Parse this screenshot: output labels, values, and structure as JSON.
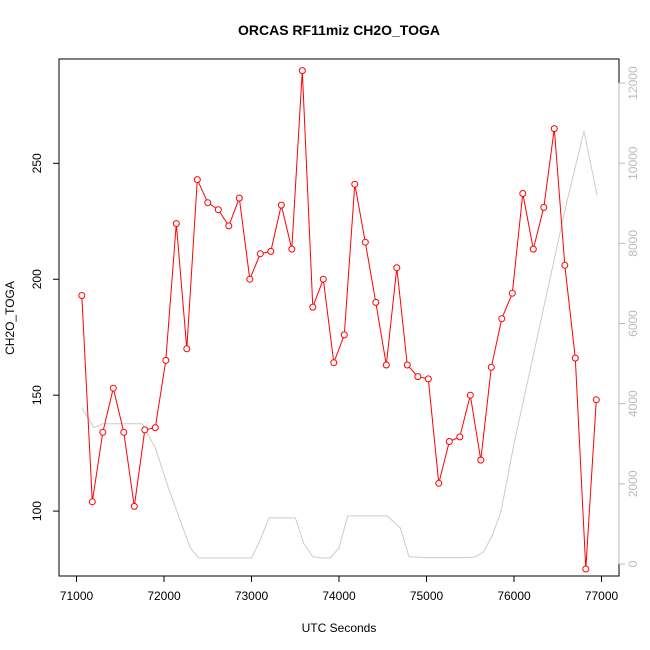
{
  "chart_data": {
    "type": "line",
    "title": "ORCAS RF11miz CH2O_TOGA",
    "xlabel": "UTC Seconds",
    "ylabel": "CH2O_TOGA",
    "xlim": [
      70800,
      77200
    ],
    "ylim": [
      72,
      295
    ],
    "y2lim": [
      -300,
      12600
    ],
    "x_ticks": [
      71000,
      72000,
      73000,
      74000,
      75000,
      76000,
      77000
    ],
    "y_ticks": [
      100,
      150,
      200,
      250
    ],
    "y2_ticks": [
      0,
      2000,
      4000,
      6000,
      8000,
      10000,
      12000
    ],
    "grid": false,
    "series": [
      {
        "axis": "left",
        "color": "#ff0000",
        "markers": true,
        "x": [
          71060,
          71180,
          71300,
          71420,
          71540,
          71660,
          71780,
          71900,
          72020,
          72140,
          72260,
          72380,
          72500,
          72620,
          72740,
          72860,
          72980,
          73100,
          73220,
          73340,
          73460,
          73580,
          73700,
          73820,
          73940,
          74060,
          74180,
          74300,
          74420,
          74540,
          74660,
          74780,
          74900,
          75020,
          75140,
          75260,
          75380,
          75500,
          75620,
          75740,
          75860,
          75980,
          76100,
          76220,
          76340,
          76460,
          76580,
          76700,
          76820,
          76940
        ],
        "y": [
          193,
          104,
          134,
          153,
          134,
          102,
          135,
          136,
          165,
          224,
          170,
          243,
          233,
          230,
          223,
          235,
          200,
          211,
          212,
          232,
          213,
          290,
          188,
          200,
          164,
          176,
          241,
          216,
          190,
          163,
          205,
          163,
          158,
          157,
          112,
          130,
          132,
          150,
          122,
          162,
          183,
          194,
          237,
          213,
          231,
          265,
          206,
          166,
          75,
          148
        ]
      },
      {
        "axis": "right",
        "color": "#cccccc",
        "markers": false,
        "x": [
          71060,
          71200,
          71300,
          71500,
          71750,
          71900,
          72050,
          72200,
          72300,
          72400,
          72600,
          72800,
          73000,
          73100,
          73200,
          73300,
          73400,
          73500,
          73600,
          73700,
          73800,
          73900,
          74000,
          74100,
          74200,
          74300,
          74400,
          74550,
          74700,
          74800,
          75000,
          75200,
          75400,
          75550,
          75650,
          75750,
          75850,
          76000,
          76200,
          76400,
          76600,
          76800,
          76950
        ],
        "y": [
          3900,
          3400,
          3500,
          3500,
          3500,
          2900,
          1900,
          1000,
          400,
          150,
          150,
          150,
          150,
          600,
          1150,
          1150,
          1150,
          1150,
          500,
          180,
          150,
          150,
          400,
          1200,
          1200,
          1200,
          1200,
          1200,
          900,
          180,
          160,
          160,
          160,
          170,
          300,
          700,
          1300,
          3000,
          5000,
          7000,
          9000,
          10800,
          9200
        ]
      }
    ]
  }
}
